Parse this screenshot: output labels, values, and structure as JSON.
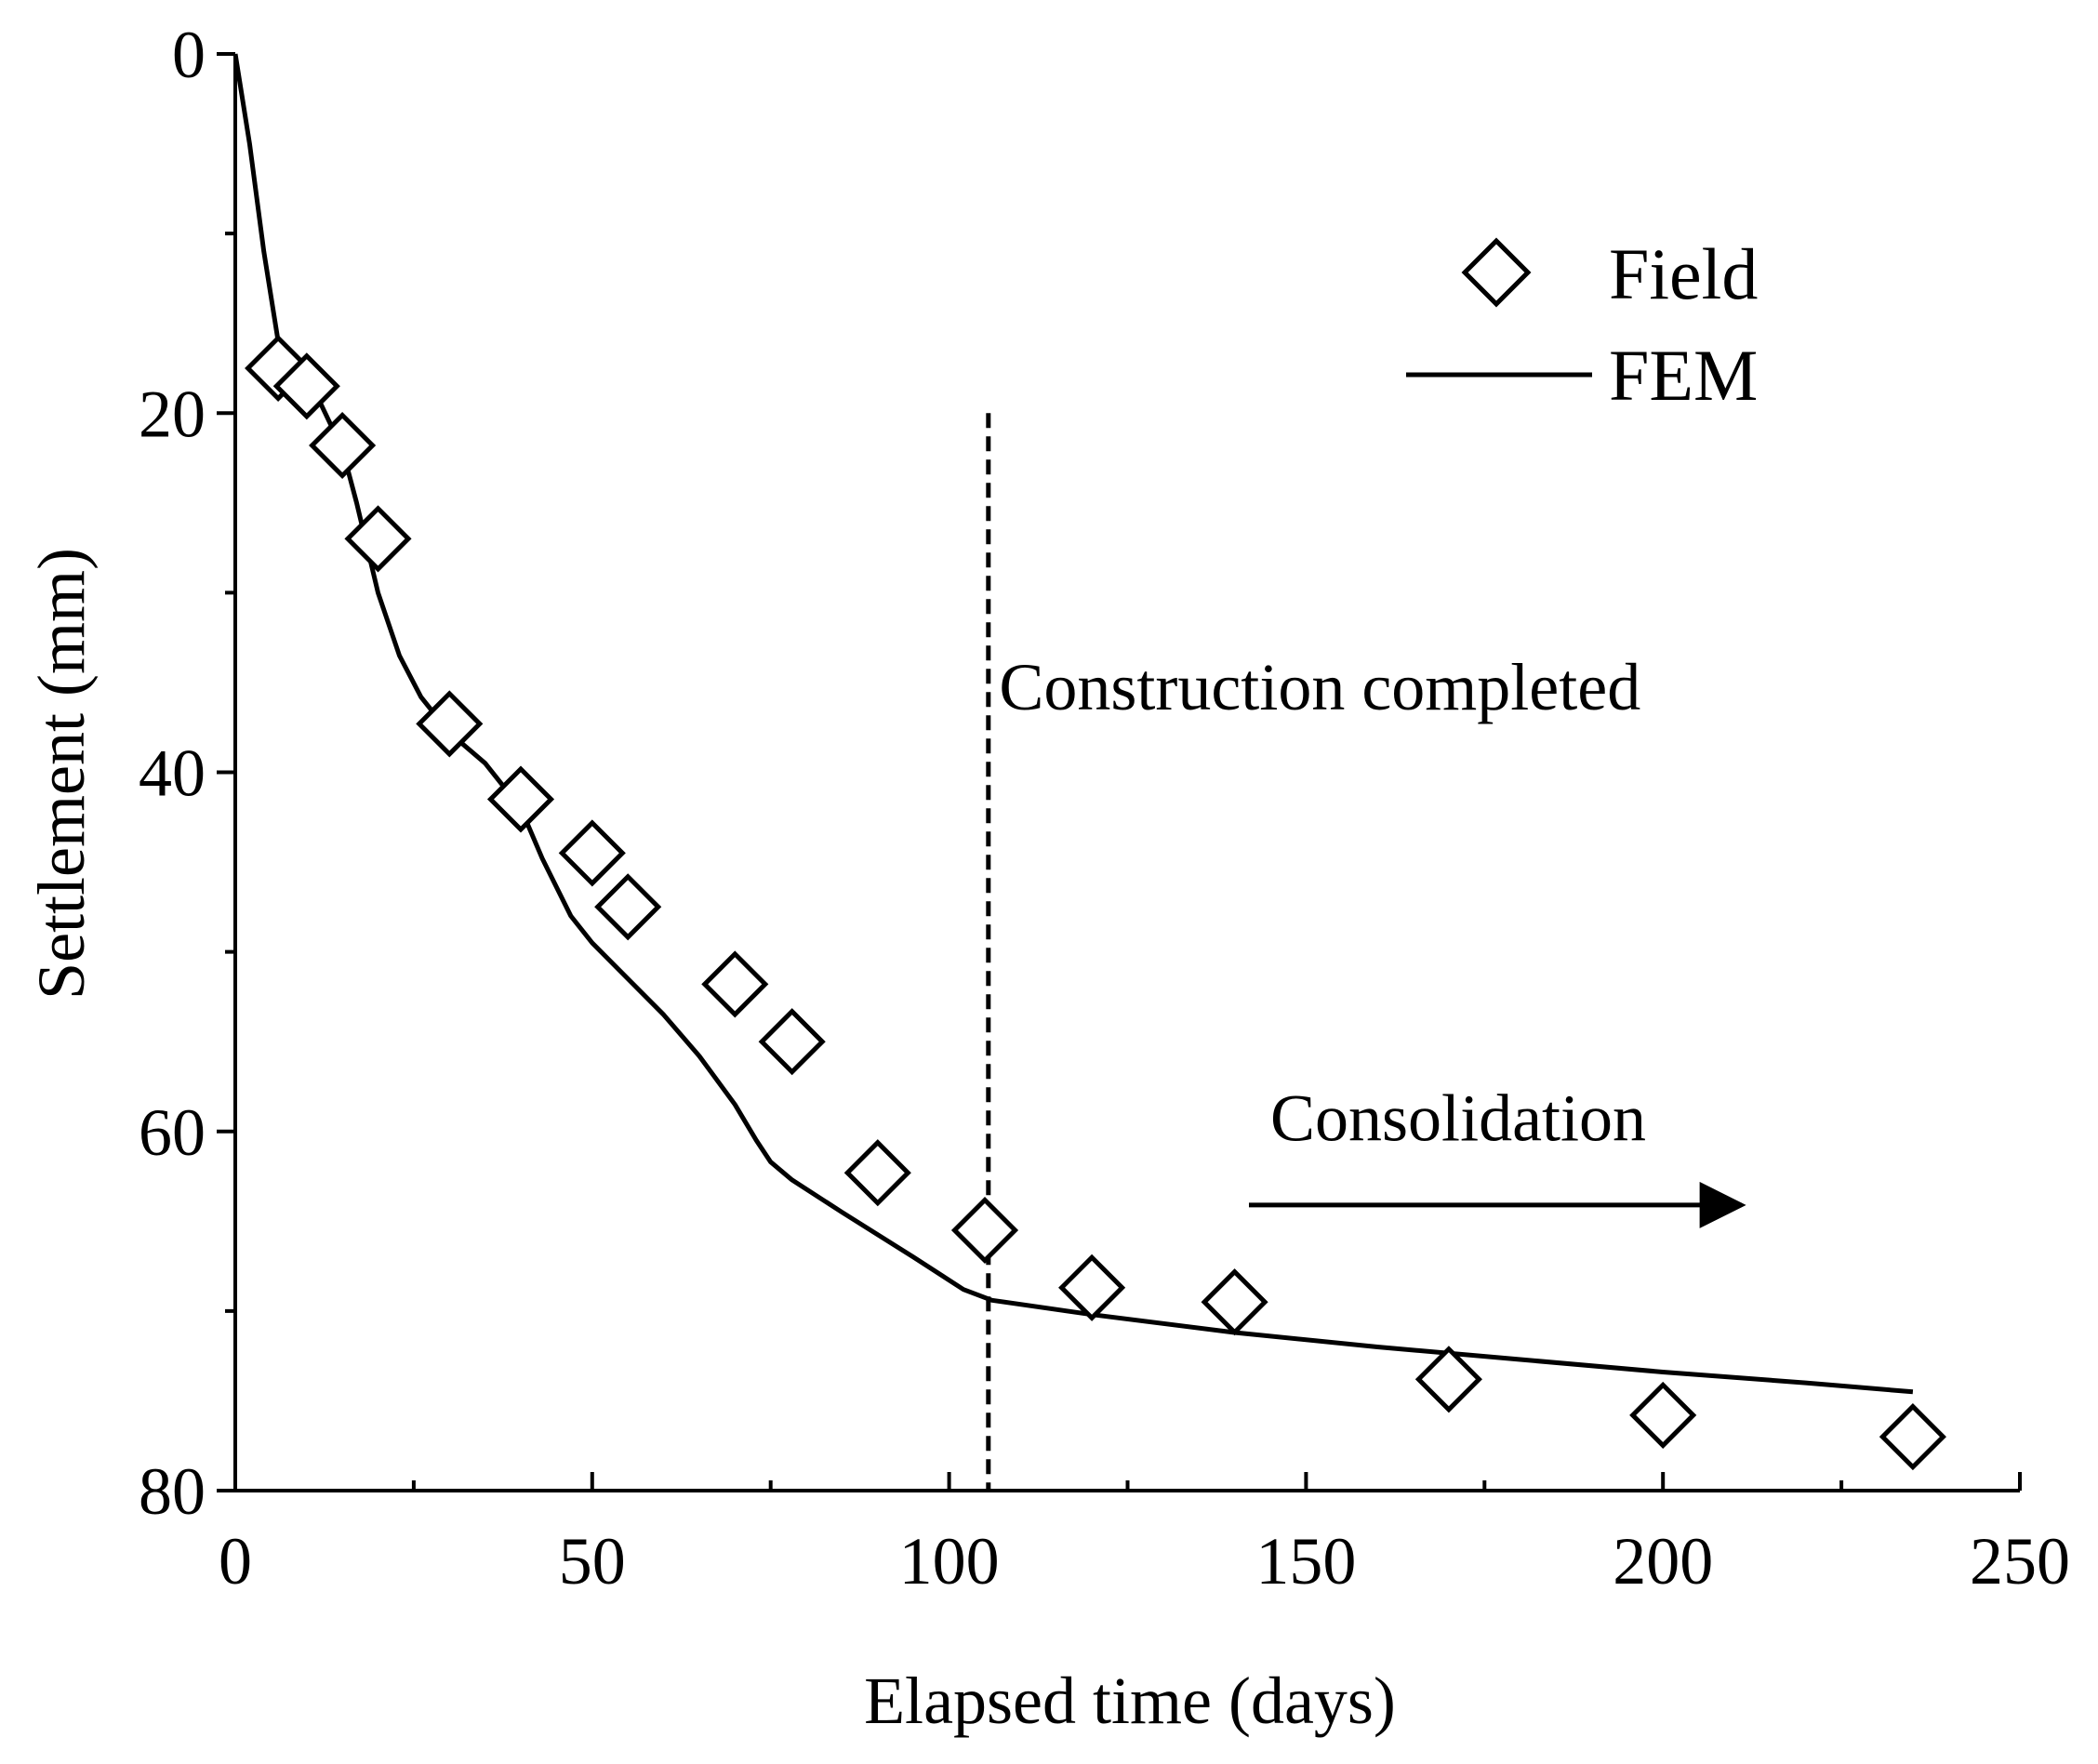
{
  "chart_data": {
    "type": "scatter",
    "xlabel": "Elapsed time (days)",
    "ylabel": "Settlement (mm)",
    "xlim": [
      0,
      250
    ],
    "ylim": [
      0,
      80
    ],
    "y_inverted": true,
    "xticks": [
      0,
      50,
      100,
      150,
      200,
      250
    ],
    "xticks_minor": [
      25,
      75,
      125,
      175,
      225
    ],
    "yticks": [
      0,
      20,
      40,
      60,
      80
    ],
    "yticks_minor": [
      10,
      30,
      50,
      70
    ],
    "legend_position": "top-right",
    "series": [
      {
        "name": "Field",
        "kind": "scatter",
        "marker": "diamond-open",
        "points": [
          {
            "x": 6,
            "y": 17.5
          },
          {
            "x": 10,
            "y": 18.5
          },
          {
            "x": 15,
            "y": 21.8
          },
          {
            "x": 20,
            "y": 27
          },
          {
            "x": 30,
            "y": 37.3
          },
          {
            "x": 40,
            "y": 41.5
          },
          {
            "x": 50,
            "y": 44.5
          },
          {
            "x": 55,
            "y": 47.5
          },
          {
            "x": 70,
            "y": 51.8
          },
          {
            "x": 78,
            "y": 55
          },
          {
            "x": 90,
            "y": 62.3
          },
          {
            "x": 105,
            "y": 65.5
          },
          {
            "x": 120,
            "y": 68.7
          },
          {
            "x": 140,
            "y": 69.5
          },
          {
            "x": 170,
            "y": 73.8
          },
          {
            "x": 200,
            "y": 75.8
          },
          {
            "x": 235,
            "y": 77
          }
        ]
      },
      {
        "name": "FEM",
        "kind": "line",
        "points": [
          {
            "x": 0,
            "y": 0
          },
          {
            "x": 2,
            "y": 5
          },
          {
            "x": 4,
            "y": 11
          },
          {
            "x": 6,
            "y": 16
          },
          {
            "x": 8,
            "y": 17.8
          },
          {
            "x": 12,
            "y": 19.5
          },
          {
            "x": 15,
            "y": 22
          },
          {
            "x": 17,
            "y": 25
          },
          {
            "x": 20,
            "y": 30
          },
          {
            "x": 23,
            "y": 33.5
          },
          {
            "x": 26,
            "y": 35.8
          },
          {
            "x": 30,
            "y": 37.8
          },
          {
            "x": 35,
            "y": 39.5
          },
          {
            "x": 40,
            "y": 42
          },
          {
            "x": 43,
            "y": 44.8
          },
          {
            "x": 47,
            "y": 48
          },
          {
            "x": 50,
            "y": 49.5
          },
          {
            "x": 55,
            "y": 51.5
          },
          {
            "x": 60,
            "y": 53.5
          },
          {
            "x": 65,
            "y": 55.8
          },
          {
            "x": 70,
            "y": 58.5
          },
          {
            "x": 73,
            "y": 60.5
          },
          {
            "x": 75,
            "y": 61.7
          },
          {
            "x": 78,
            "y": 62.7
          },
          {
            "x": 85,
            "y": 64.5
          },
          {
            "x": 95,
            "y": 67
          },
          {
            "x": 102,
            "y": 68.8
          },
          {
            "x": 106,
            "y": 69.4
          },
          {
            "x": 120,
            "y": 70.2
          },
          {
            "x": 140,
            "y": 71.2
          },
          {
            "x": 160,
            "y": 72
          },
          {
            "x": 180,
            "y": 72.7
          },
          {
            "x": 200,
            "y": 73.4
          },
          {
            "x": 220,
            "y": 74
          },
          {
            "x": 235,
            "y": 74.5
          }
        ]
      }
    ],
    "vline": {
      "x": 105.5,
      "y_from": 20,
      "y_to": 80,
      "style": "dashed"
    },
    "annotations": [
      {
        "text": "Construction completed",
        "x": 107,
        "y": 36.5
      },
      {
        "text": "Consolidation",
        "x": 145,
        "y": 60.5
      }
    ],
    "arrow": {
      "from": {
        "x": 142,
        "y": 64.1
      },
      "to": {
        "x": 211,
        "y": 64.1
      }
    }
  }
}
